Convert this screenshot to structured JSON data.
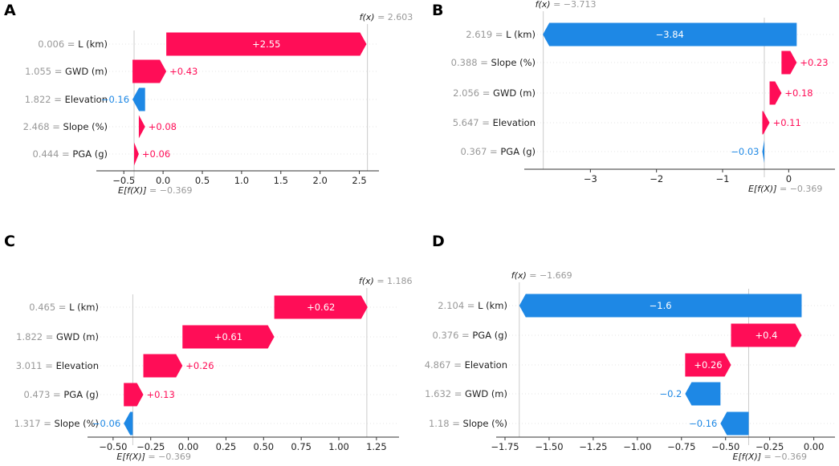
{
  "colors": {
    "positive": "#ff0d57",
    "negative": "#1e88e5",
    "axis": "#333333",
    "muted": "#999999",
    "grid": "#cccccc"
  },
  "chart_data": [
    {
      "type": "waterfall",
      "panel_label": "A",
      "base_value": -0.369,
      "output_value": 2.603,
      "fx_label": "f(x)",
      "fx_value_text": "= 2.603",
      "ex_label": "E[f(X)]",
      "ex_value_text": "= −0.369",
      "xlim": [
        -0.85,
        2.75
      ],
      "xticks": [
        -0.5,
        0.0,
        0.5,
        1.0,
        1.5,
        2.0,
        2.5
      ],
      "xtick_labels": [
        "−0.5",
        "0.0",
        "0.5",
        "1.0",
        "1.5",
        "2.0",
        "2.5"
      ],
      "features": [
        {
          "value_text": "0.006 =",
          "name": "L (km)",
          "shap": 2.55,
          "label": "+2.55"
        },
        {
          "value_text": "1.055 =",
          "name": "GWD (m)",
          "shap": 0.43,
          "label": "+0.43"
        },
        {
          "value_text": "1.822 =",
          "name": "Elevation",
          "shap": -0.16,
          "label": "−0.16"
        },
        {
          "value_text": "2.468 =",
          "name": "Slope (%)",
          "shap": 0.08,
          "label": "+0.08"
        },
        {
          "value_text": "0.444 =",
          "name": "PGA (g)",
          "shap": 0.06,
          "label": "+0.06"
        }
      ]
    },
    {
      "type": "waterfall",
      "panel_label": "B",
      "base_value": -0.369,
      "output_value": -3.713,
      "fx_label": "f(x)",
      "fx_value_text": "= −3.713",
      "ex_label": "E[f(X)]",
      "ex_value_text": "= −0.369",
      "xlim": [
        -4.0,
        0.7
      ],
      "xticks": [
        -3,
        -2,
        -1,
        0
      ],
      "xtick_labels": [
        "−3",
        "−2",
        "−1",
        "0"
      ],
      "features": [
        {
          "value_text": "2.619 =",
          "name": "L (km)",
          "shap": -3.84,
          "label": "−3.84"
        },
        {
          "value_text": "0.388 =",
          "name": "Slope (%)",
          "shap": 0.23,
          "label": "+0.23"
        },
        {
          "value_text": "2.056 =",
          "name": "GWD (m)",
          "shap": 0.18,
          "label": "+0.18"
        },
        {
          "value_text": "5.647 =",
          "name": "Elevation",
          "shap": 0.11,
          "label": "+0.11"
        },
        {
          "value_text": "0.367 =",
          "name": "PGA (g)",
          "shap": -0.03,
          "label": "−0.03"
        }
      ]
    },
    {
      "type": "waterfall",
      "panel_label": "C",
      "base_value": -0.369,
      "output_value": 1.186,
      "fx_label": "f(x)",
      "fx_value_text": "= 1.186",
      "ex_label": "E[f(X)]",
      "ex_value_text": "= −0.369",
      "xlim": [
        -0.67,
        1.4
      ],
      "xticks": [
        -0.5,
        -0.25,
        0.0,
        0.25,
        0.5,
        0.75,
        1.0,
        1.25
      ],
      "xtick_labels": [
        "−0.50",
        "−0.25",
        "0.00",
        "0.25",
        "0.50",
        "0.75",
        "1.00",
        "1.25"
      ],
      "features": [
        {
          "value_text": "0.465 =",
          "name": "L (km)",
          "shap": 0.62,
          "label": "+0.62"
        },
        {
          "value_text": "1.822 =",
          "name": "GWD (m)",
          "shap": 0.61,
          "label": "+0.61"
        },
        {
          "value_text": "3.011 =",
          "name": "Elevation",
          "shap": 0.26,
          "label": "+0.26"
        },
        {
          "value_text": "0.473 =",
          "name": "PGA (g)",
          "shap": 0.13,
          "label": "+0.13"
        },
        {
          "value_text": "1.317 =",
          "name": "Slope (%)",
          "shap": -0.06,
          "label": "−0.06"
        }
      ]
    },
    {
      "type": "waterfall",
      "panel_label": "D",
      "base_value": -0.369,
      "output_value": -1.669,
      "fx_label": "f(x)",
      "fx_value_text": "= −1.669",
      "ex_label": "E[f(X)]",
      "ex_value_text": "= −0.369",
      "xlim": [
        -1.8,
        0.12
      ],
      "xticks": [
        -1.75,
        -1.5,
        -1.25,
        -1.0,
        -0.75,
        -0.5,
        -0.25,
        0.0
      ],
      "xtick_labels": [
        "−1.75",
        "−1.50",
        "−1.25",
        "−1.00",
        "−0.75",
        "−0.50",
        "−0.25",
        "0.00"
      ],
      "features": [
        {
          "value_text": "2.104 =",
          "name": "L (km)",
          "shap": -1.6,
          "label": "−1.6"
        },
        {
          "value_text": "0.376 =",
          "name": "PGA (g)",
          "shap": 0.4,
          "label": "+0.4"
        },
        {
          "value_text": "4.867 =",
          "name": "Elevation",
          "shap": 0.26,
          "label": "+0.26"
        },
        {
          "value_text": "1.632 =",
          "name": "GWD (m)",
          "shap": -0.2,
          "label": "−0.2"
        },
        {
          "value_text": "1.18 =",
          "name": "Slope (%)",
          "shap": -0.16,
          "label": "−0.16"
        }
      ]
    }
  ]
}
